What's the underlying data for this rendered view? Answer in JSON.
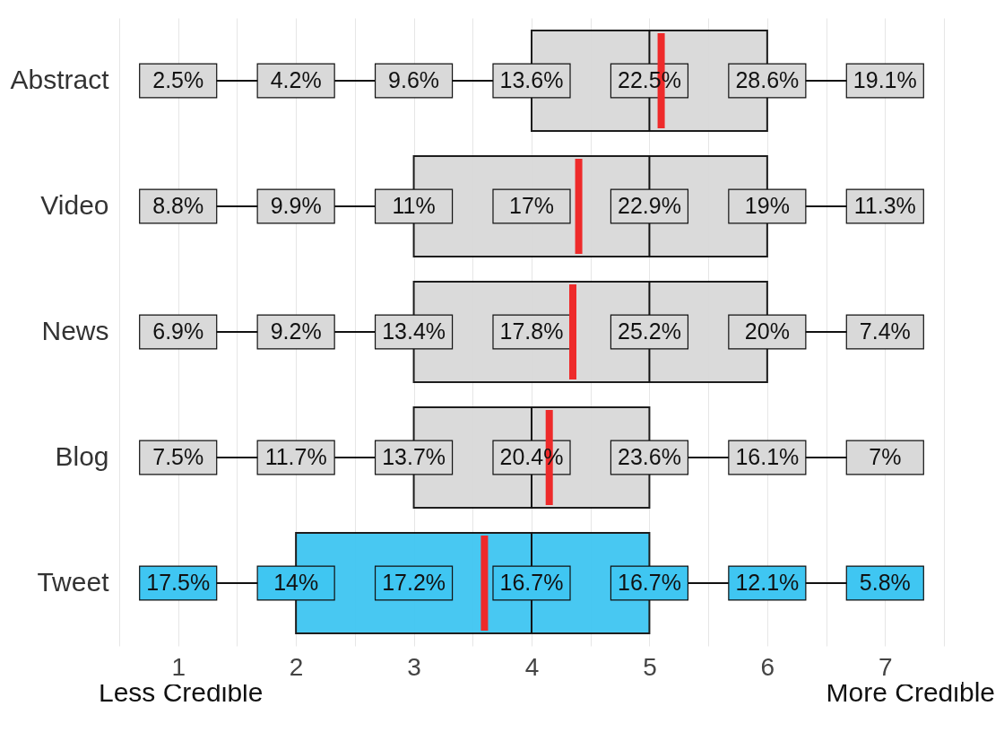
{
  "chart_data": {
    "type": "box",
    "orientation": "horizontal",
    "categories": [
      "Abstract",
      "Video",
      "News",
      "Blog",
      "Tweet"
    ],
    "boxes": [
      {
        "low": 1,
        "q1": 4,
        "median": 5,
        "q3": 6,
        "high": 7,
        "mean": 5.1
      },
      {
        "low": 1,
        "q1": 3,
        "median": 5,
        "q3": 6,
        "high": 7,
        "mean": 4.4
      },
      {
        "low": 1,
        "q1": 3,
        "median": 5,
        "q3": 6,
        "high": 7,
        "mean": 4.35
      },
      {
        "low": 1,
        "q1": 3,
        "median": 4,
        "q3": 5,
        "high": 7,
        "mean": 4.15
      },
      {
        "low": 1,
        "q1": 2,
        "median": 4,
        "q3": 5,
        "high": 7,
        "mean": 3.6
      }
    ],
    "colors": [
      "#d9d9d9",
      "#d9d9d9",
      "#d9d9d9",
      "#d9d9d9",
      "#3fc6f2"
    ],
    "xlim": [
      0.5,
      7.5
    ],
    "xticks": [
      {
        "value": 0.5,
        "label": null
      },
      1,
      {
        "value": 1.5,
        "label": null
      },
      2,
      {
        "value": 2.5,
        "label": null
      },
      3,
      {
        "value": 3.5,
        "label": null
      },
      4,
      {
        "value": 4.5,
        "label": null
      },
      5,
      {
        "value": 5.5,
        "label": null
      },
      6,
      {
        "value": 6.5,
        "label": null
      },
      7,
      {
        "value": 7.5,
        "label": null
      }
    ],
    "grid": "x",
    "annotations": [
      "2.5%",
      "4.2%",
      "9.6%",
      "13.6%",
      "22.5%",
      "28.6%",
      "19.1%",
      "8.8%",
      "9.9%",
      "11%",
      "17%",
      "22.9%",
      "19%",
      "11.3%",
      "6.9%",
      "9.2%",
      "13.4%",
      "17.8%",
      "25.2%",
      "20%",
      "7.4%",
      "7.5%",
      "11.7%",
      "13.7%",
      "20.4%",
      "23.6%",
      "16.1%",
      "7%",
      "17.5%",
      "14%",
      "17.2%",
      "16.7%",
      "16.7%",
      "12.1%",
      "5.8%",
      "Less Credible",
      "More Credible"
    ]
  }
}
